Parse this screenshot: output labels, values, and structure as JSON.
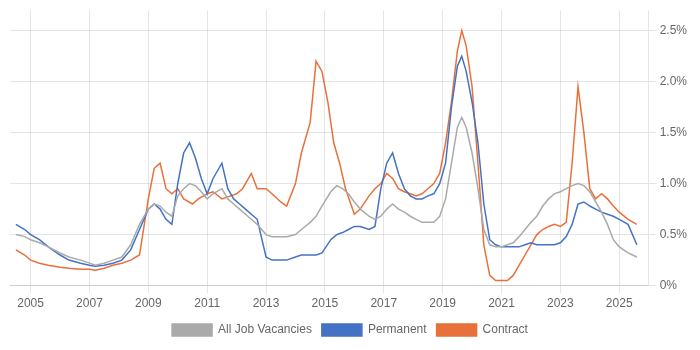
{
  "chart_data": {
    "type": "line",
    "xlim": [
      2004.3,
      2026.0
    ],
    "xticks": [
      2005,
      2007,
      2009,
      2011,
      2013,
      2015,
      2017,
      2019,
      2021,
      2023,
      2025
    ],
    "ylim": [
      0,
      0.027
    ],
    "yticks": [
      {
        "value": 0,
        "label": "0%"
      },
      {
        "value": 0.005,
        "label": "0.5%"
      },
      {
        "value": 0.01,
        "label": "1.0%"
      },
      {
        "value": 0.015,
        "label": "1.5%"
      },
      {
        "value": 0.02,
        "label": "2.0%"
      },
      {
        "value": 0.025,
        "label": "2.5%"
      }
    ],
    "grid": true,
    "legend": "bottom",
    "series": [
      {
        "name": "All Job Vacancies",
        "color": "#AAAAAA",
        "x": [
          2004.5,
          2004.8,
          2005.0,
          2005.3,
          2005.6,
          2006.0,
          2006.3,
          2006.7,
          2007.0,
          2007.2,
          2007.5,
          2007.8,
          2008.1,
          2008.4,
          2008.7,
          2009.0,
          2009.2,
          2009.4,
          2009.6,
          2009.8,
          2010.0,
          2010.2,
          2010.4,
          2010.6,
          2010.8,
          2011.0,
          2011.2,
          2011.5,
          2011.7,
          2011.9,
          2012.1,
          2012.3,
          2012.5,
          2012.7,
          2013.0,
          2013.2,
          2013.5,
          2013.7,
          2014.0,
          2014.2,
          2014.5,
          2014.7,
          2014.9,
          2015.2,
          2015.4,
          2015.6,
          2015.8,
          2016.0,
          2016.2,
          2016.5,
          2016.7,
          2016.9,
          2017.1,
          2017.3,
          2017.5,
          2017.7,
          2017.9,
          2018.1,
          2018.3,
          2018.5,
          2018.7,
          2018.9,
          2019.1,
          2019.3,
          2019.5,
          2019.65,
          2019.8,
          2020.0,
          2020.2,
          2020.4,
          2020.6,
          2020.8,
          2021.0,
          2021.2,
          2021.4,
          2021.6,
          2021.8,
          2022.0,
          2022.2,
          2022.4,
          2022.6,
          2022.8,
          2023.0,
          2023.2,
          2023.4,
          2023.6,
          2023.8,
          2024.0,
          2024.2,
          2024.4,
          2024.6,
          2024.8,
          2025.0,
          2025.3,
          2025.6
        ],
        "values": [
          0.005,
          0.0048,
          0.0045,
          0.0042,
          0.0038,
          0.0032,
          0.0028,
          0.0025,
          0.0022,
          0.002,
          0.0022,
          0.0025,
          0.0028,
          0.004,
          0.006,
          0.0075,
          0.008,
          0.0078,
          0.0072,
          0.0068,
          0.0088,
          0.0095,
          0.01,
          0.0098,
          0.0092,
          0.0085,
          0.009,
          0.0095,
          0.0085,
          0.008,
          0.0075,
          0.007,
          0.0065,
          0.006,
          0.005,
          0.0048,
          0.0048,
          0.0048,
          0.005,
          0.0055,
          0.0062,
          0.0068,
          0.0078,
          0.0092,
          0.0098,
          0.0095,
          0.009,
          0.0082,
          0.0075,
          0.0068,
          0.0065,
          0.0068,
          0.0075,
          0.008,
          0.0075,
          0.0072,
          0.0068,
          0.0065,
          0.0062,
          0.0062,
          0.0062,
          0.0068,
          0.0085,
          0.012,
          0.0155,
          0.0165,
          0.0155,
          0.013,
          0.0095,
          0.0055,
          0.004,
          0.0038,
          0.0038,
          0.004,
          0.0042,
          0.0048,
          0.0055,
          0.0062,
          0.0068,
          0.0078,
          0.0085,
          0.009,
          0.0092,
          0.0095,
          0.0098,
          0.01,
          0.0098,
          0.0092,
          0.0082,
          0.0072,
          0.006,
          0.0045,
          0.0038,
          0.0032,
          0.0028
        ]
      },
      {
        "name": "Permanent",
        "color": "#4472C4",
        "x": [
          2004.5,
          2004.8,
          2005.0,
          2005.3,
          2005.6,
          2006.0,
          2006.3,
          2006.7,
          2007.0,
          2007.2,
          2007.5,
          2007.8,
          2008.1,
          2008.4,
          2008.7,
          2009.0,
          2009.2,
          2009.4,
          2009.6,
          2009.8,
          2010.0,
          2010.2,
          2010.4,
          2010.6,
          2010.8,
          2011.0,
          2011.2,
          2011.5,
          2011.7,
          2011.9,
          2012.1,
          2012.3,
          2012.5,
          2012.7,
          2013.0,
          2013.2,
          2013.5,
          2013.7,
          2014.0,
          2014.2,
          2014.5,
          2014.7,
          2014.9,
          2015.2,
          2015.4,
          2015.6,
          2015.8,
          2016.0,
          2016.2,
          2016.5,
          2016.7,
          2016.9,
          2017.1,
          2017.3,
          2017.5,
          2017.7,
          2017.9,
          2018.1,
          2018.3,
          2018.5,
          2018.7,
          2018.9,
          2019.1,
          2019.3,
          2019.5,
          2019.65,
          2019.8,
          2020.0,
          2020.2,
          2020.4,
          2020.6,
          2020.8,
          2021.0,
          2021.2,
          2021.4,
          2021.6,
          2021.8,
          2022.0,
          2022.2,
          2022.4,
          2022.6,
          2022.8,
          2023.0,
          2023.2,
          2023.4,
          2023.6,
          2023.8,
          2024.0,
          2024.2,
          2024.4,
          2024.6,
          2024.8,
          2025.0,
          2025.3,
          2025.6
        ],
        "values": [
          0.006,
          0.0055,
          0.005,
          0.0045,
          0.0038,
          0.003,
          0.0025,
          0.0022,
          0.002,
          0.0019,
          0.002,
          0.0022,
          0.0025,
          0.0035,
          0.0055,
          0.0075,
          0.008,
          0.0075,
          0.0065,
          0.006,
          0.01,
          0.013,
          0.014,
          0.0125,
          0.0105,
          0.009,
          0.0105,
          0.012,
          0.0095,
          0.0085,
          0.008,
          0.0075,
          0.007,
          0.0065,
          0.0028,
          0.0025,
          0.0025,
          0.0025,
          0.0028,
          0.003,
          0.003,
          0.003,
          0.0032,
          0.0045,
          0.005,
          0.0052,
          0.0055,
          0.0058,
          0.0058,
          0.0055,
          0.0058,
          0.0095,
          0.012,
          0.013,
          0.011,
          0.0095,
          0.0088,
          0.0085,
          0.0085,
          0.0088,
          0.009,
          0.01,
          0.012,
          0.0175,
          0.0215,
          0.0225,
          0.021,
          0.018,
          0.014,
          0.008,
          0.0045,
          0.004,
          0.0038,
          0.0038,
          0.0038,
          0.0038,
          0.004,
          0.0042,
          0.004,
          0.004,
          0.004,
          0.004,
          0.0042,
          0.0048,
          0.006,
          0.008,
          0.0082,
          0.0078,
          0.0075,
          0.0072,
          0.007,
          0.0068,
          0.0065,
          0.006,
          0.004
        ]
      },
      {
        "name": "Contract",
        "color": "#E8703A",
        "x": [
          2004.5,
          2004.8,
          2005.0,
          2005.3,
          2005.6,
          2006.0,
          2006.3,
          2006.7,
          2007.0,
          2007.2,
          2007.5,
          2007.8,
          2008.1,
          2008.4,
          2008.7,
          2009.0,
          2009.2,
          2009.4,
          2009.6,
          2009.8,
          2010.0,
          2010.2,
          2010.5,
          2010.7,
          2011.0,
          2011.2,
          2011.5,
          2011.8,
          2012.0,
          2012.2,
          2012.5,
          2012.7,
          2013.0,
          2013.2,
          2013.5,
          2013.7,
          2014.0,
          2014.2,
          2014.5,
          2014.7,
          2014.9,
          2015.1,
          2015.3,
          2015.5,
          2015.7,
          2016.0,
          2016.2,
          2016.5,
          2016.7,
          2016.9,
          2017.1,
          2017.3,
          2017.5,
          2017.7,
          2017.9,
          2018.1,
          2018.3,
          2018.5,
          2018.7,
          2018.9,
          2019.1,
          2019.3,
          2019.5,
          2019.65,
          2019.8,
          2020.0,
          2020.2,
          2020.4,
          2020.6,
          2020.8,
          2021.0,
          2021.2,
          2021.4,
          2021.6,
          2021.8,
          2022.0,
          2022.2,
          2022.4,
          2022.6,
          2022.8,
          2023.0,
          2023.2,
          2023.4,
          2023.6,
          2023.8,
          2024.0,
          2024.2,
          2024.4,
          2024.6,
          2024.8,
          2025.0,
          2025.3,
          2025.6
        ],
        "values": [
          0.0035,
          0.003,
          0.0025,
          0.0022,
          0.002,
          0.0018,
          0.0017,
          0.0016,
          0.0016,
          0.0015,
          0.0017,
          0.002,
          0.0022,
          0.0025,
          0.003,
          0.0085,
          0.0115,
          0.012,
          0.0095,
          0.009,
          0.0095,
          0.0085,
          0.008,
          0.0085,
          0.009,
          0.0092,
          0.0085,
          0.0088,
          0.009,
          0.0095,
          0.011,
          0.0095,
          0.0095,
          0.009,
          0.0082,
          0.0078,
          0.01,
          0.013,
          0.016,
          0.022,
          0.021,
          0.018,
          0.014,
          0.012,
          0.0095,
          0.007,
          0.0075,
          0.0088,
          0.0095,
          0.01,
          0.011,
          0.0105,
          0.0095,
          0.0092,
          0.009,
          0.0088,
          0.009,
          0.0095,
          0.01,
          0.011,
          0.014,
          0.018,
          0.023,
          0.025,
          0.0235,
          0.0195,
          0.012,
          0.004,
          0.001,
          0.0005,
          0.0005,
          0.0005,
          0.001,
          0.002,
          0.003,
          0.004,
          0.005,
          0.0055,
          0.0058,
          0.006,
          0.0058,
          0.0062,
          0.012,
          0.0195,
          0.015,
          0.0095,
          0.0085,
          0.009,
          0.0085,
          0.0078,
          0.0072,
          0.0065,
          0.006
        ]
      }
    ]
  }
}
